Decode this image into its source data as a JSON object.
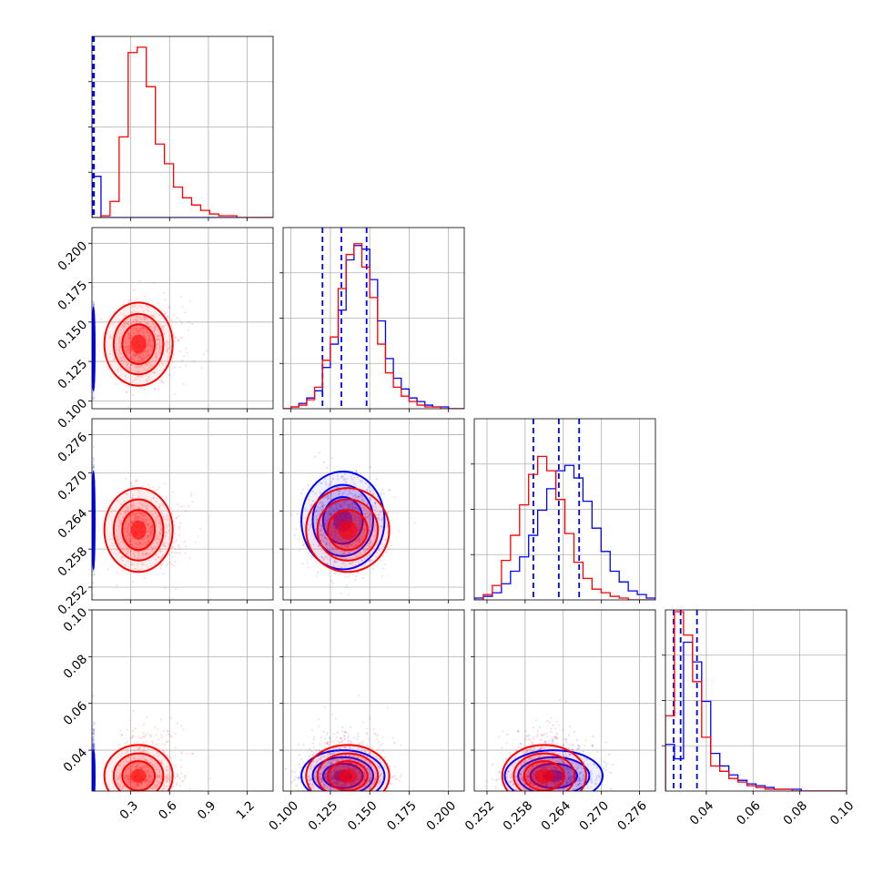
{
  "colors": {
    "blue": "#0000ff",
    "red": "#ff0000"
  },
  "chart_data": {
    "type": "corner",
    "grid": true,
    "parameters": [
      {
        "range": [
          0.0,
          1.4
        ],
        "ticks": [
          0.3,
          0.6,
          0.9,
          1.2
        ],
        "tick_labels": [
          "0.3",
          "0.6",
          "0.9",
          "1.2"
        ]
      },
      {
        "range": [
          0.095,
          0.21
        ],
        "ticks": [
          0.1,
          0.125,
          0.15,
          0.175,
          0.2
        ],
        "tick_labels": [
          "0.100",
          "0.125",
          "0.150",
          "0.175",
          "0.200"
        ]
      },
      {
        "range": [
          0.25,
          0.2785
        ],
        "ticks": [
          0.252,
          0.258,
          0.264,
          0.27,
          0.276
        ],
        "tick_labels": [
          "0.252",
          "0.258",
          "0.264",
          "0.270",
          "0.276"
        ]
      },
      {
        "range": [
          0.0225,
          0.1
        ],
        "ticks": [
          0.04,
          0.06,
          0.08,
          0.1
        ],
        "tick_labels": [
          "0.04",
          "0.06",
          "0.08",
          "0.10"
        ]
      }
    ],
    "series": [
      {
        "color": "#0000ff",
        "mean": [
          0.012,
          0.133,
          0.2625,
          0.029
        ],
        "sd": [
          0.004,
          0.012,
          0.0035,
          0.005
        ],
        "quantiles": [
          [
            0.008,
            0.012,
            0.016
          ],
          [
            0.12,
            0.132,
            0.148
          ],
          [
            0.2593,
            0.2633,
            0.2665
          ],
          [
            0.026,
            0.029,
            0.036
          ]
        ],
        "hist": [
          [
            23,
            0,
            0,
            0,
            0,
            0,
            0,
            0,
            0,
            0,
            0,
            0,
            0,
            0,
            0,
            0,
            0,
            0,
            0,
            0
          ],
          [
            0,
            1,
            3,
            6,
            10,
            23,
            36,
            55,
            83,
            91,
            89,
            72,
            49,
            28,
            17,
            11,
            6,
            4,
            2,
            1,
            1,
            0,
            0
          ],
          [
            1,
            2,
            4,
            9,
            16,
            24,
            36,
            50,
            62,
            72,
            75,
            68,
            55,
            40,
            27,
            16,
            10,
            5,
            3,
            1
          ],
          [
            26,
            18,
            83,
            72,
            50,
            21,
            14,
            9,
            6,
            4,
            3,
            2,
            1,
            1,
            1,
            0,
            0,
            0,
            0,
            0
          ]
        ]
      },
      {
        "color": "#ff0000",
        "mean": [
          0.36,
          0.136,
          0.261,
          0.029
        ],
        "sd": [
          0.12,
          0.012,
          0.003,
          0.006
        ],
        "quantiles": [],
        "hist": [
          [
            0,
            1,
            9,
            45,
            92,
            95,
            73,
            41,
            30,
            17,
            11,
            7,
            4,
            2,
            1,
            1,
            0,
            0,
            0,
            0
          ],
          [
            0,
            1,
            2,
            5,
            12,
            27,
            40,
            67,
            86,
            92,
            79,
            62,
            36,
            20,
            12,
            7,
            4,
            2,
            1,
            1,
            0,
            0,
            0
          ],
          [
            0,
            3,
            8,
            22,
            36,
            53,
            70,
            80,
            72,
            56,
            37,
            21,
            12,
            6,
            4,
            2,
            1,
            0,
            0,
            0
          ],
          [
            42,
            100,
            87,
            61,
            30,
            14,
            11,
            7,
            5,
            3,
            2,
            1,
            1,
            1,
            0,
            0,
            0,
            0,
            0,
            0
          ]
        ]
      }
    ]
  }
}
